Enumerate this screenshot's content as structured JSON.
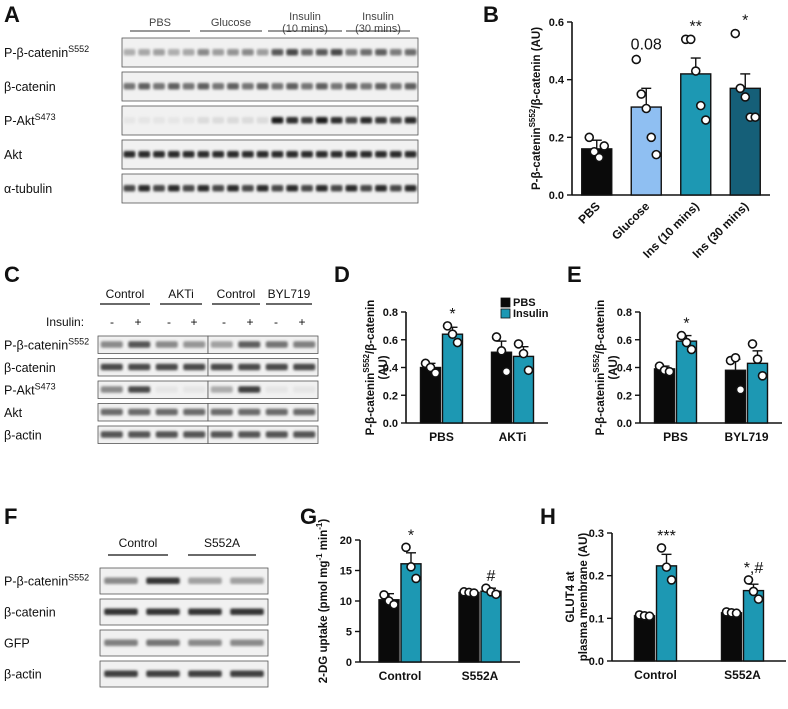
{
  "colors": {
    "black": "#0a0a0a",
    "lightblue": "#8fbff2",
    "teal": "#1d98b3",
    "darkteal": "#155f78"
  },
  "panels": {
    "A": {
      "label": "A",
      "groups": [
        "PBS",
        "Glucose",
        "Insulin\n(10 mins)",
        "Insulin\n(30 mins)"
      ],
      "rows": [
        {
          "label": "P-β-catenin",
          "sup": "S552"
        },
        {
          "label": "β-catenin",
          "sup": ""
        },
        {
          "label": "P-Akt",
          "sup": "S473"
        },
        {
          "label": "Akt",
          "sup": ""
        },
        {
          "label": "α-tubulin",
          "sup": ""
        }
      ]
    },
    "C": {
      "label": "C",
      "groups": [
        "Control",
        "AKTi",
        "Control",
        "BYL719"
      ],
      "insulin_label": "Insulin:",
      "insulin_signs": [
        "-",
        "+",
        "-",
        "+",
        "-",
        "+",
        "-",
        "+"
      ],
      "rows": [
        {
          "label": "P-β-catenin",
          "sup": "S552"
        },
        {
          "label": "β-catenin",
          "sup": ""
        },
        {
          "label": "P-Akt",
          "sup": "S473"
        },
        {
          "label": "Akt",
          "sup": ""
        },
        {
          "label": "β-actin",
          "sup": ""
        }
      ]
    },
    "F": {
      "label": "F",
      "groups": [
        "Control",
        "S552A"
      ],
      "rows": [
        {
          "label": "P-β-catenin",
          "sup": "S552"
        },
        {
          "label": "β-catenin",
          "sup": ""
        },
        {
          "label": "GFP",
          "sup": ""
        },
        {
          "label": "β-actin",
          "sup": ""
        }
      ]
    }
  },
  "chart_data": [
    {
      "panel": "B",
      "type": "bar",
      "ylabel": "P-β-catenin",
      "ylabel_sup": "S552",
      "ylabel_rest": "/β-catenin (AU)",
      "ylim": [
        0,
        0.6
      ],
      "yticks": [
        "0.0",
        "0.2",
        "0.4",
        "0.6"
      ],
      "categories": [
        "PBS",
        "Glucose",
        "Ins (10 mins)",
        "Ins (30 mins)"
      ],
      "values": [
        0.16,
        0.305,
        0.42,
        0.37
      ],
      "errors": [
        0.03,
        0.065,
        0.055,
        0.05
      ],
      "bar_colors": [
        "#0a0a0a",
        "#8fbff2",
        "#1d98b3",
        "#155f78"
      ],
      "points": [
        [
          0.2,
          0.15,
          0.13,
          0.17
        ],
        [
          0.47,
          0.35,
          0.3,
          0.2,
          0.14
        ],
        [
          0.54,
          0.54,
          0.43,
          0.31,
          0.26
        ],
        [
          0.56,
          0.37,
          0.34,
          0.27,
          0.27
        ]
      ],
      "annotations": [
        "",
        "0.08",
        "**",
        "*"
      ]
    },
    {
      "panel": "D",
      "type": "bar",
      "ylabel": "P-β-catenin",
      "ylabel_sup": "S552",
      "ylabel_rest": "/β-catenin",
      "ylabel2": "(AU)",
      "ylim": [
        0,
        0.8
      ],
      "yticks": [
        "0.0",
        "0.2",
        "0.4",
        "0.6",
        "0.8"
      ],
      "categories": [
        "PBS",
        "AKTi"
      ],
      "series": [
        {
          "name": "PBS",
          "values": [
            0.4,
            0.51
          ],
          "errors": [
            0.03,
            0.08
          ],
          "points": [
            [
              0.43,
              0.4,
              0.36
            ],
            [
              0.62,
              0.52,
              0.37
            ]
          ]
        },
        {
          "name": "Insulin",
          "values": [
            0.64,
            0.48
          ],
          "errors": [
            0.05,
            0.07
          ],
          "points": [
            [
              0.7,
              0.64,
              0.58
            ],
            [
              0.57,
              0.5,
              0.38
            ]
          ]
        }
      ],
      "annotations": [
        "*",
        ""
      ],
      "legend": "top-right"
    },
    {
      "panel": "E",
      "type": "bar",
      "ylabel": "P-β-catenin",
      "ylabel_sup": "S552",
      "ylabel_rest": "/β-catenin",
      "ylabel2": "(AU)",
      "ylim": [
        0,
        0.8
      ],
      "yticks": [
        "0.0",
        "0.2",
        "0.4",
        "0.6",
        "0.8"
      ],
      "categories": [
        "PBS",
        "BYL719"
      ],
      "series": [
        {
          "name": "PBS",
          "values": [
            0.39,
            0.38
          ],
          "errors": [
            0.02,
            0.08
          ],
          "points": [
            [
              0.41,
              0.38,
              0.37
            ],
            [
              0.45,
              0.47,
              0.24
            ]
          ]
        },
        {
          "name": "Insulin",
          "values": [
            0.59,
            0.43
          ],
          "errors": [
            0.04,
            0.09
          ],
          "points": [
            [
              0.63,
              0.58,
              0.53
            ],
            [
              0.57,
              0.46,
              0.34
            ]
          ]
        }
      ],
      "annotations": [
        "*",
        ""
      ]
    },
    {
      "panel": "G",
      "type": "bar",
      "ylabel": "2-DG uptake (pmol mg",
      "ylabel_sup": "-1",
      "ylabel_rest": " min",
      "ylabel_sup2": "-1",
      "ylabel_end": ")",
      "ylim": [
        0,
        20
      ],
      "yticks": [
        "0",
        "5",
        "10",
        "15",
        "20"
      ],
      "categories": [
        "Control",
        "S552A"
      ],
      "series": [
        {
          "name": "PBS",
          "values": [
            10.2,
            11.4
          ],
          "errors": [
            1.0,
            0.1
          ],
          "points": [
            [
              11.0,
              10.0,
              9.4
            ],
            [
              11.5,
              11.4,
              11.3
            ]
          ]
        },
        {
          "name": "Insulin",
          "values": [
            16.1,
            11.6
          ],
          "errors": [
            1.8,
            0.5
          ],
          "points": [
            [
              18.8,
              15.6,
              13.7
            ],
            [
              12.1,
              11.5,
              11.1
            ]
          ]
        }
      ],
      "annotations": [
        "*",
        "#"
      ]
    },
    {
      "panel": "H",
      "type": "bar",
      "ylabel": "GLUT4 at",
      "ylabel2": "plasma membrane (AU)",
      "ylim": [
        0,
        0.3
      ],
      "yticks": [
        "0.0",
        "0.1",
        "0.2",
        "0.3"
      ],
      "categories": [
        "Control",
        "S552A"
      ],
      "series": [
        {
          "name": "PBS",
          "values": [
            0.106,
            0.113
          ],
          "errors": [
            0.003,
            0.002
          ],
          "points": [
            [
              0.108,
              0.106,
              0.105
            ],
            [
              0.115,
              0.113,
              0.112
            ]
          ]
        },
        {
          "name": "Insulin",
          "values": [
            0.223,
            0.165
          ],
          "errors": [
            0.027,
            0.015
          ],
          "points": [
            [
              0.265,
              0.22,
              0.19
            ],
            [
              0.19,
              0.163,
              0.145
            ]
          ]
        }
      ],
      "annotations": [
        "***",
        "*,#"
      ]
    }
  ]
}
